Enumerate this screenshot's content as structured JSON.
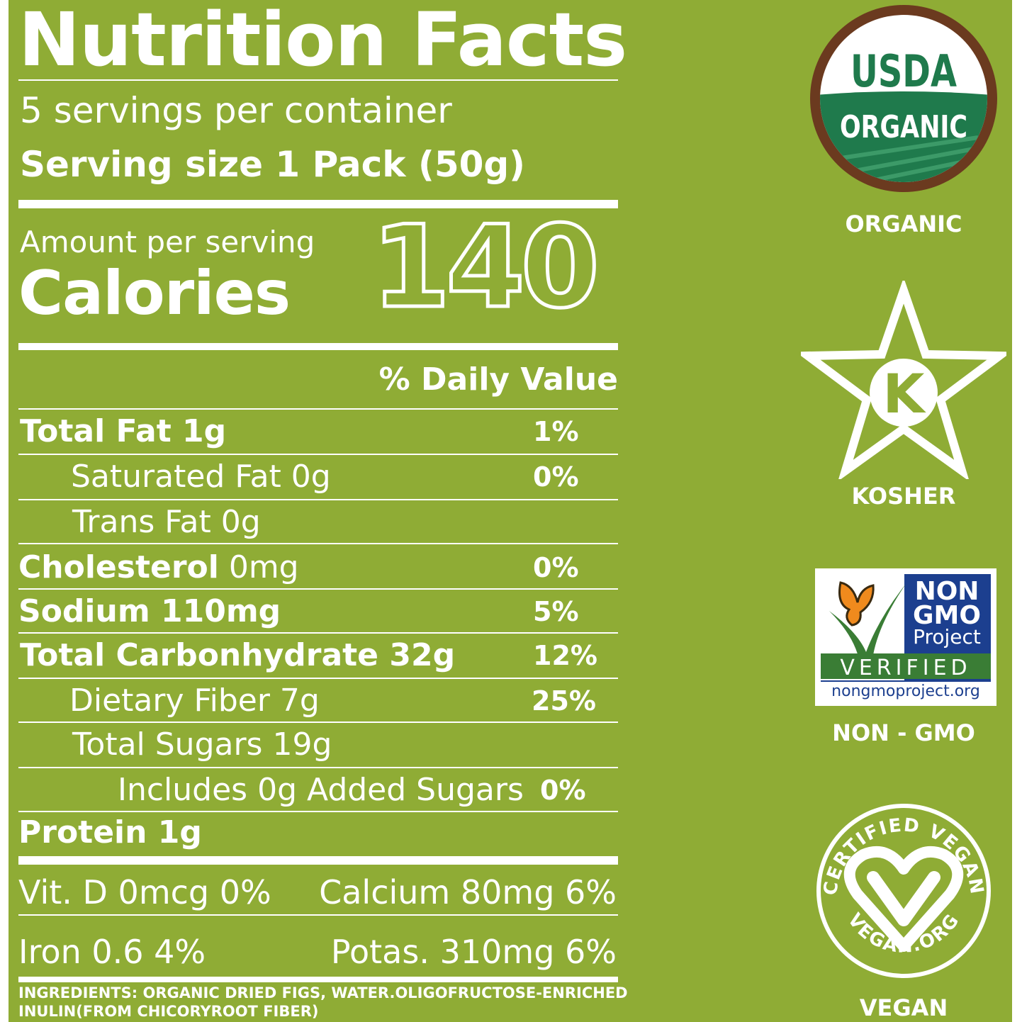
{
  "header": {
    "title": "Nutrition Facts",
    "servings": "5 servings per container",
    "serving_size": "Serving size 1 Pack (50g)"
  },
  "calories": {
    "amount_label": "Amount per serving",
    "label": "Calories",
    "value": "140"
  },
  "daily_value_header": "% Daily Value",
  "nutrients": [
    {
      "name": "Total Fat",
      "amount": " 1g",
      "dv": "1%"
    },
    {
      "name": "Saturated Fat",
      "amount": " 0g",
      "dv": "0%"
    },
    {
      "name": "Trans Fat",
      "amount": " 0g",
      "dv": ""
    },
    {
      "name": "Cholesterol",
      "amount": " 0mg",
      "dv": "0%"
    },
    {
      "name": "Sodium",
      "amount": " 110mg",
      "dv": "5%"
    },
    {
      "name": "Total Carbonhydrate",
      "amount": " 32g",
      "dv": "12%"
    },
    {
      "name": "Dietary Fiber",
      "amount": " 7g",
      "dv": "25%"
    },
    {
      "name": "Total Sugars",
      "amount": " 19g",
      "dv": ""
    },
    {
      "name": "Includes 0g Added Sugars",
      "amount": "",
      "dv": "0%"
    },
    {
      "name": "Protein",
      "amount": " 1g",
      "dv": ""
    }
  ],
  "vitamins": {
    "vit_d": "Vit. D 0mcg 0%",
    "calcium": "Calcium 80mg 6%",
    "iron": "Iron 0.6 4%",
    "potassium": "Potas. 310mg 6%"
  },
  "ingredients": {
    "line1": "INGREDIENTS: ORGANIC DRIED FIGS, WATER.OLIGOFRUCTOSE-ENRICHED",
    "line2": "INULIN(FROM CHICORYROOT FIBER)"
  },
  "badges": {
    "usda": {
      "top": "USDA",
      "bottom": "ORGANIC",
      "label": "ORGANIC"
    },
    "kosher": {
      "letter": "K",
      "label": "KOSHER"
    },
    "nongmo": {
      "line1": "NON",
      "line2": "GMO",
      "line3": "Project",
      "verified": "VERIFIED",
      "url": "nongmoproject.org",
      "label": "NON - GMO"
    },
    "vegan": {
      "top_text": "CERTIFIED VEGAN",
      "bottom_text": "VEGAN.ORG",
      "label": "VEGAN"
    }
  },
  "colors": {
    "background": "#8fac35",
    "usda_green": "#1f7a4c",
    "usda_brown": "#6b3a1f",
    "nongmo_blue": "#1c3f8f",
    "nongmo_green": "#3a7d35",
    "butterfly_orange": "#f08a1d"
  }
}
